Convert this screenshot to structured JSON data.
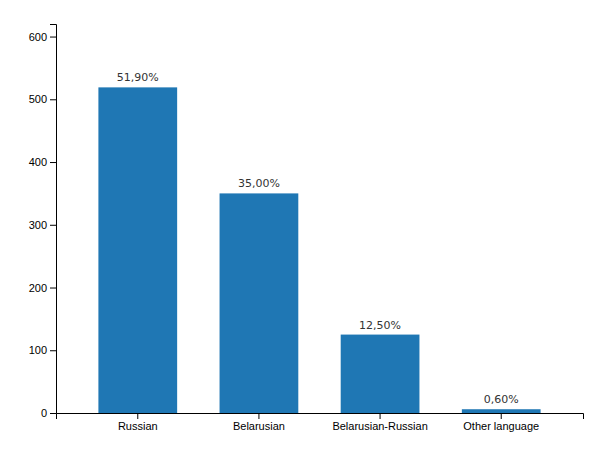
{
  "chart_data": {
    "type": "bar",
    "categories": [
      "Russian",
      "Belarusian",
      "Belarusian-Russian",
      "Other language"
    ],
    "values": [
      519,
      350,
      125,
      6
    ],
    "value_labels": [
      "51,90%",
      "35,00%",
      "12,50%",
      "0,60%"
    ],
    "data_labels": true,
    "ylim": [
      0,
      620
    ],
    "yticks": [
      0,
      100,
      200,
      300,
      400,
      500,
      600
    ],
    "grid": false
  }
}
